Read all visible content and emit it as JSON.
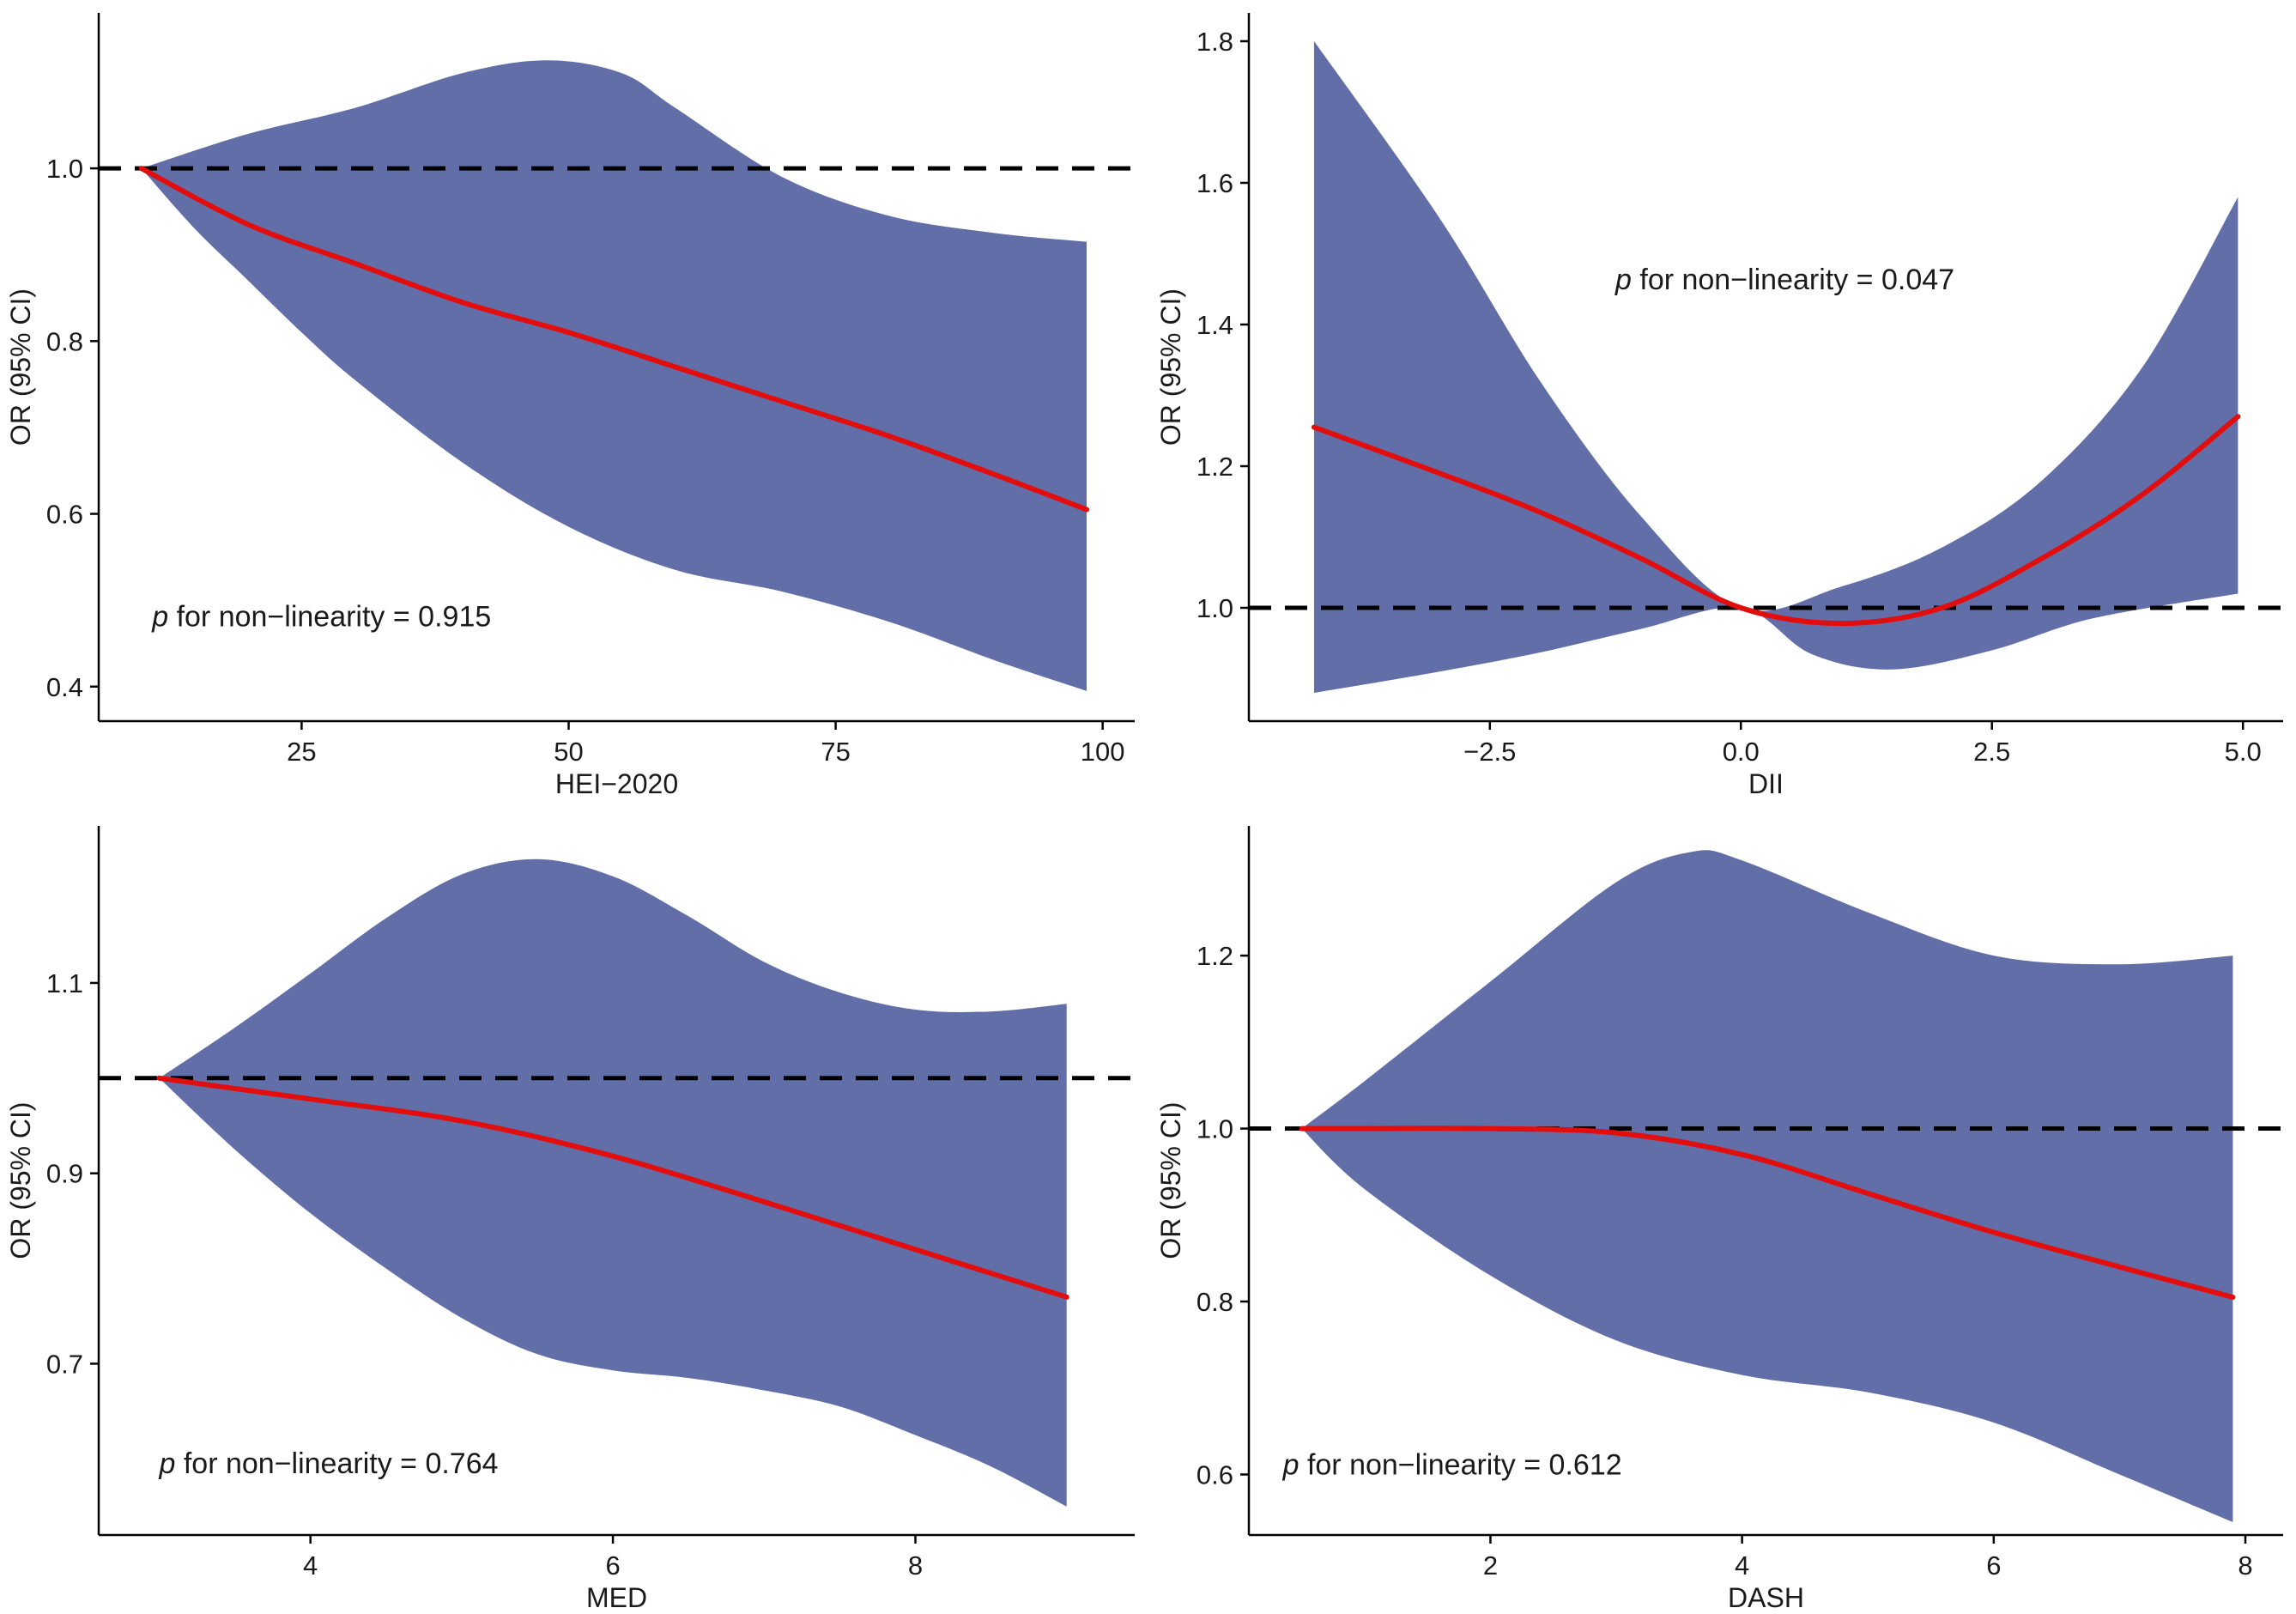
{
  "colors": {
    "ci_band": "#626ea8",
    "fit_line": "#e20e0e",
    "reference_line": "#000000"
  },
  "chart_data": [
    {
      "type": "area",
      "name": "hei",
      "title": "",
      "xlabel": "HEI−2020",
      "ylabel": "OR (95% CI)",
      "xlim": [
        6,
        103
      ],
      "ylim": [
        0.36,
        1.18
      ],
      "xticks": [
        25,
        50,
        75,
        100
      ],
      "yticks": [
        0.4,
        0.6,
        0.8,
        1.0
      ],
      "xtick_labels": [
        "25",
        "50",
        "75",
        "100"
      ],
      "ytick_labels": [
        "0.4",
        "0.6",
        "0.8",
        "1.0"
      ],
      "reference_y": 1.0,
      "annotation": {
        "p": "p",
        "text": " for non−linearity = 0.915",
        "pos_x": 11,
        "pos_y": 0.47
      },
      "series": [
        {
          "name": "OR",
          "x": [
            10,
            20,
            30,
            40,
            50,
            60,
            70,
            80,
            90,
            98.5
          ],
          "values": [
            1.0,
            0.935,
            0.89,
            0.845,
            0.81,
            0.77,
            0.73,
            0.69,
            0.645,
            0.605
          ]
        },
        {
          "name": "CI upper",
          "x": [
            10,
            20,
            30,
            40,
            48,
            55,
            60,
            70,
            80,
            90,
            98.5
          ],
          "values": [
            1.0,
            1.04,
            1.07,
            1.11,
            1.125,
            1.11,
            1.07,
            0.99,
            0.945,
            0.925,
            0.915
          ]
        },
        {
          "name": "CI lower",
          "x": [
            10,
            15,
            20,
            25,
            30,
            40,
            50,
            60,
            70,
            80,
            90,
            98.5
          ],
          "values": [
            1.0,
            0.93,
            0.87,
            0.81,
            0.755,
            0.66,
            0.585,
            0.535,
            0.51,
            0.475,
            0.43,
            0.395
          ]
        }
      ]
    },
    {
      "type": "area",
      "name": "dii",
      "title": "",
      "xlabel": "DII",
      "ylabel": "OR (95% CI)",
      "xlim": [
        -4.9,
        5.4
      ],
      "ylim": [
        0.84,
        1.84
      ],
      "xticks": [
        -2.5,
        0.0,
        2.5,
        5.0
      ],
      "yticks": [
        1.0,
        1.2,
        1.4,
        1.6,
        1.8
      ],
      "xtick_labels": [
        "−2.5",
        "0.0",
        "2.5",
        "5.0"
      ],
      "ytick_labels": [
        "1.0",
        "1.2",
        "1.4",
        "1.6",
        "1.8"
      ],
      "reference_y": 1.0,
      "annotation": {
        "p": "p",
        "text": " for non−linearity = 0.047",
        "pos_x": -1.25,
        "pos_y": 1.45
      },
      "series": [
        {
          "name": "OR",
          "x": [
            -4.25,
            -3,
            -2,
            -1,
            0,
            1,
            2,
            3,
            4,
            4.95
          ],
          "values": [
            1.255,
            1.19,
            1.135,
            1.07,
            1.0,
            0.978,
            1.0,
            1.07,
            1.16,
            1.27
          ]
        },
        {
          "name": "CI upper",
          "x": [
            -4.25,
            -3,
            -2,
            -1,
            0,
            1,
            2,
            3,
            4,
            4.95
          ],
          "values": [
            1.8,
            1.55,
            1.32,
            1.13,
            1.0,
            1.03,
            1.085,
            1.18,
            1.34,
            1.58
          ]
        },
        {
          "name": "CI lower",
          "x": [
            -4.25,
            -3,
            -2,
            -1,
            0,
            0.7,
            1.5,
            2.5,
            3.5,
            4.95
          ],
          "values": [
            0.88,
            0.91,
            0.937,
            0.97,
            1.0,
            0.935,
            0.913,
            0.94,
            0.985,
            1.02
          ]
        }
      ]
    },
    {
      "type": "area",
      "name": "med",
      "title": "",
      "xlabel": "MED",
      "ylabel": "OR (95% CI)",
      "xlim": [
        2.6,
        9.45
      ],
      "ylim": [
        0.52,
        1.265
      ],
      "xticks": [
        4,
        6,
        8
      ],
      "yticks": [
        0.7,
        0.9,
        1.1
      ],
      "xtick_labels": [
        "4",
        "6",
        "8"
      ],
      "ytick_labels": [
        "0.7",
        "0.9",
        "1.1"
      ],
      "reference_y": 1.0,
      "annotation": {
        "p": "p",
        "text": " for non−linearity = 0.764",
        "pos_x": 3.0,
        "pos_y": 0.585
      },
      "series": [
        {
          "name": "OR",
          "x": [
            3,
            4,
            5,
            6,
            7,
            8,
            9
          ],
          "values": [
            1.0,
            0.978,
            0.955,
            0.918,
            0.87,
            0.82,
            0.77
          ]
        },
        {
          "name": "CI upper",
          "x": [
            3,
            3.5,
            4,
            4.5,
            5,
            5.5,
            6,
            6.5,
            7,
            7.5,
            8,
            8.5,
            9
          ],
          "values": [
            1.0,
            1.053,
            1.11,
            1.168,
            1.214,
            1.23,
            1.212,
            1.17,
            1.122,
            1.09,
            1.072,
            1.07,
            1.078
          ]
        },
        {
          "name": "CI lower",
          "x": [
            3,
            3.5,
            4,
            4.5,
            5,
            5.5,
            6,
            6.5,
            7,
            7.5,
            8,
            8.5,
            9
          ],
          "values": [
            1.0,
            0.925,
            0.858,
            0.8,
            0.748,
            0.71,
            0.693,
            0.685,
            0.672,
            0.655,
            0.625,
            0.592,
            0.55
          ]
        }
      ]
    },
    {
      "type": "area",
      "name": "dash",
      "title": "",
      "xlabel": "DASH",
      "ylabel": "OR (95% CI)",
      "xlim": [
        0.08,
        8.3
      ],
      "ylim": [
        0.53,
        1.35
      ],
      "xticks": [
        2,
        4,
        6,
        8
      ],
      "yticks": [
        0.6,
        0.8,
        1.0,
        1.2
      ],
      "xtick_labels": [
        "2",
        "4",
        "6",
        "8"
      ],
      "ytick_labels": [
        "0.6",
        "0.8",
        "1.0",
        "1.2"
      ],
      "reference_y": 1.0,
      "annotation": {
        "p": "p",
        "text": " for non−linearity = 0.612",
        "pos_x": 0.35,
        "pos_y": 0.6
      },
      "series": [
        {
          "name": "OR",
          "x": [
            0.5,
            1,
            2,
            3,
            4,
            5,
            6,
            7,
            7.9
          ],
          "values": [
            1.0,
            1.0,
            1.0,
            0.995,
            0.97,
            0.925,
            0.88,
            0.84,
            0.805
          ]
        },
        {
          "name": "CI upper",
          "x": [
            0.5,
            1,
            2,
            3,
            3.6,
            4,
            5,
            6,
            7,
            7.9
          ],
          "values": [
            1.0,
            1.055,
            1.17,
            1.285,
            1.32,
            1.31,
            1.25,
            1.2,
            1.19,
            1.2
          ]
        },
        {
          "name": "CI lower",
          "x": [
            0.5,
            1,
            2,
            3,
            4,
            5,
            6,
            7,
            7.9
          ],
          "values": [
            1.0,
            0.93,
            0.83,
            0.755,
            0.715,
            0.695,
            0.66,
            0.6,
            0.545
          ]
        }
      ]
    }
  ]
}
